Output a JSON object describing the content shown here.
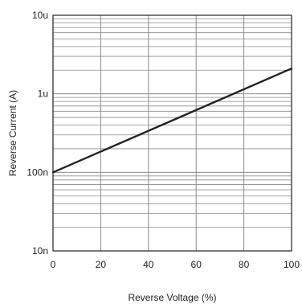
{
  "chart_data": {
    "type": "line",
    "xlabel": "Reverse Voltage (%)",
    "ylabel": "Reverse Current (A)",
    "xlim": [
      0,
      100
    ],
    "ylim": [
      1e-08,
      1e-05
    ],
    "yscale": "log",
    "grid": true,
    "x_ticks": [
      0,
      20,
      40,
      60,
      80,
      100
    ],
    "x_tick_labels": [
      "0",
      "20",
      "40",
      "60",
      "80",
      "100"
    ],
    "y_ticks": [
      1e-08,
      1e-07,
      1e-06,
      1e-05
    ],
    "y_tick_labels": [
      "10n",
      "100n",
      "1u",
      "10u"
    ],
    "series": [
      {
        "x": [
          0,
          100
        ],
        "y": [
          1e-07,
          2.1e-06
        ],
        "color": "#222222"
      }
    ],
    "grid_color": "#8a8a8a",
    "line_color": "#222222"
  }
}
